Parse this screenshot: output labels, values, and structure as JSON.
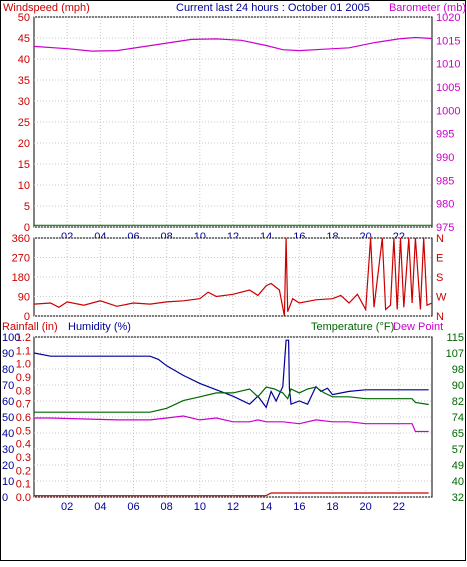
{
  "header": {
    "left_label": "Windspeed (mph)",
    "center_label": "Current last 24 hours : October 01 2005",
    "right_label": "Barometer (mb)"
  },
  "colors": {
    "windspeed": "#cc0000",
    "barometer": "#cc00cc",
    "hour_axis": "#000099",
    "wind_direction": "#cc0000",
    "rainfall": "#cc0000",
    "humidity": "#000099",
    "temperature": "#006600",
    "dew_point": "#cc00cc",
    "green_trace": "#008800"
  },
  "chart_data": [
    {
      "name": "wind-barometer",
      "type": "line",
      "left_axis": {
        "label": "Windspeed (mph)",
        "range": [
          0,
          50
        ],
        "ticks": [
          "0",
          "5",
          "10",
          "15",
          "20",
          "25",
          "30",
          "35",
          "40",
          "45",
          "50"
        ]
      },
      "right_axis": {
        "label": "Barometer (mb)",
        "range": [
          975,
          1020
        ],
        "ticks": [
          "975",
          "980",
          "985",
          "990",
          "995",
          "1000",
          "1005",
          "1010",
          "1015",
          "1020"
        ]
      },
      "x_axis": {
        "range": [
          0,
          24
        ],
        "ticks": [
          {
            "x": 2,
            "label": "02"
          },
          {
            "x": 4,
            "label": "04"
          },
          {
            "x": 6,
            "label": "06"
          },
          {
            "x": 8,
            "label": "08"
          },
          {
            "x": 10,
            "label": "10"
          },
          {
            "x": 12,
            "label": "12"
          },
          {
            "x": 14,
            "label": "14"
          },
          {
            "x": 16,
            "label": "16"
          },
          {
            "x": 18,
            "label": "18"
          },
          {
            "x": 20,
            "label": "20"
          },
          {
            "x": 22,
            "label": "22"
          }
        ]
      },
      "series": [
        {
          "key": "barometer",
          "axis": "right",
          "points": [
            [
              0,
              1013.7
            ],
            [
              2,
              1013.2
            ],
            [
              3.5,
              1012.7
            ],
            [
              5,
              1012.8
            ],
            [
              6.5,
              1013.6
            ],
            [
              8,
              1014.4
            ],
            [
              9.5,
              1015.2
            ],
            [
              11,
              1015.3
            ],
            [
              12.5,
              1015.0
            ],
            [
              14,
              1013.9
            ],
            [
              15,
              1013.0
            ],
            [
              16,
              1012.8
            ],
            [
              17.5,
              1013.1
            ],
            [
              19,
              1013.4
            ],
            [
              20.5,
              1014.5
            ],
            [
              22,
              1015.3
            ],
            [
              23,
              1015.6
            ],
            [
              24,
              1015.4
            ]
          ]
        },
        {
          "key": "windspeed",
          "axis": "left",
          "points": [
            [
              0,
              0.4
            ],
            [
              24,
              0.4
            ]
          ]
        }
      ]
    },
    {
      "name": "wind-direction",
      "type": "line",
      "left_axis": {
        "range": [
          0,
          360
        ],
        "ticks": [
          "0",
          "90",
          "180",
          "270",
          "360"
        ]
      },
      "right_axis": {
        "ticks": [
          "N",
          "E",
          "S",
          "W",
          "N"
        ]
      },
      "x_axis": {
        "range": [
          0,
          24
        ]
      },
      "series": [
        {
          "key": "wind_direction",
          "points": [
            [
              0,
              55
            ],
            [
              1,
              60
            ],
            [
              1.5,
              40
            ],
            [
              2,
              65
            ],
            [
              3,
              50
            ],
            [
              4,
              70
            ],
            [
              5,
              45
            ],
            [
              6,
              60
            ],
            [
              7,
              55
            ],
            [
              8,
              65
            ],
            [
              9,
              70
            ],
            [
              10,
              80
            ],
            [
              10.5,
              110
            ],
            [
              11,
              90
            ],
            [
              12,
              100
            ],
            [
              13,
              120
            ],
            [
              13.5,
              95
            ],
            [
              14,
              140
            ],
            [
              14.3,
              150
            ],
            [
              14.8,
              120
            ],
            [
              15.1,
              0
            ],
            [
              15.2,
              360
            ],
            [
              15.3,
              20
            ],
            [
              15.6,
              80
            ],
            [
              16,
              60
            ],
            [
              17,
              75
            ],
            [
              18,
              80
            ],
            [
              18.5,
              95
            ],
            [
              19,
              60
            ],
            [
              19.5,
              100
            ],
            [
              20,
              30
            ],
            [
              20.3,
              360
            ],
            [
              20.5,
              40
            ],
            [
              21,
              360
            ],
            [
              21.2,
              30
            ],
            [
              21.5,
              50
            ],
            [
              21.7,
              360
            ],
            [
              21.9,
              30
            ],
            [
              22.1,
              360
            ],
            [
              22.3,
              40
            ],
            [
              22.6,
              360
            ],
            [
              22.8,
              60
            ],
            [
              23,
              360
            ],
            [
              23.3,
              30
            ],
            [
              23.5,
              360
            ],
            [
              23.7,
              50
            ],
            [
              24,
              60
            ]
          ]
        }
      ]
    },
    {
      "name": "rain-humidity-temperature",
      "type": "line",
      "header": {
        "rain_label": "Rainfall (in)",
        "humidity_label": "Humidity (%)",
        "temp_label": "Temperature (°F)",
        "dew_label": "Dew Point"
      },
      "rain_axis": {
        "range": [
          0,
          1.2
        ],
        "ticks": [
          "0.0",
          "0.1",
          "0.2",
          "0.3",
          "0.4",
          "0.5",
          "0.6",
          "0.7",
          "0.8",
          "0.9",
          "1.0",
          "1.1",
          "1.2"
        ]
      },
      "humidity_axis": {
        "range": [
          0,
          100
        ],
        "ticks": [
          "0",
          "10",
          "20",
          "30",
          "40",
          "50",
          "60",
          "70",
          "80",
          "90",
          "100"
        ]
      },
      "temp_axis": {
        "range": [
          32,
          115
        ],
        "ticks": [
          "32",
          "40",
          "49",
          "57",
          "65",
          "74",
          "82",
          "90",
          "98",
          "107",
          "115"
        ]
      },
      "x_axis": {
        "range": [
          0,
          24
        ],
        "ticks": [
          {
            "x": 2,
            "label": "02"
          },
          {
            "x": 4,
            "label": "04"
          },
          {
            "x": 6,
            "label": "06"
          },
          {
            "x": 8,
            "label": "08"
          },
          {
            "x": 10,
            "label": "10"
          },
          {
            "x": 12,
            "label": "12"
          },
          {
            "x": 14,
            "label": "14"
          },
          {
            "x": 16,
            "label": "16"
          },
          {
            "x": 18,
            "label": "18"
          },
          {
            "x": 20,
            "label": "20"
          },
          {
            "x": 22,
            "label": "22"
          }
        ]
      },
      "series": [
        {
          "key": "humidity",
          "axis": "humidity",
          "points": [
            [
              0,
              90
            ],
            [
              1,
              88
            ],
            [
              7,
              88
            ],
            [
              7.5,
              86
            ],
            [
              8,
              82
            ],
            [
              9,
              76
            ],
            [
              10,
              71
            ],
            [
              11,
              67
            ],
            [
              12,
              63
            ],
            [
              13,
              58
            ],
            [
              13.5,
              63
            ],
            [
              14,
              56
            ],
            [
              14.3,
              66
            ],
            [
              14.6,
              60
            ],
            [
              15,
              69
            ],
            [
              15.2,
              98
            ],
            [
              15.35,
              98
            ],
            [
              15.4,
              68
            ],
            [
              15.5,
              58
            ],
            [
              16,
              60
            ],
            [
              16.5,
              58
            ],
            [
              17,
              69
            ],
            [
              17.3,
              66
            ],
            [
              17.7,
              68
            ],
            [
              18,
              64
            ],
            [
              19,
              66
            ],
            [
              20,
              67
            ],
            [
              23.8,
              67
            ]
          ]
        },
        {
          "key": "temperature",
          "axis": "temp",
          "points": [
            [
              0,
              76
            ],
            [
              6,
              76
            ],
            [
              7,
              76
            ],
            [
              8,
              78
            ],
            [
              9,
              82
            ],
            [
              10,
              84
            ],
            [
              11,
              86
            ],
            [
              12,
              86
            ],
            [
              13,
              88
            ],
            [
              13.5,
              84
            ],
            [
              14,
              89
            ],
            [
              14.5,
              88
            ],
            [
              15,
              86
            ],
            [
              15.3,
              83
            ],
            [
              15.5,
              88
            ],
            [
              16,
              86
            ],
            [
              16.5,
              88
            ],
            [
              17,
              89
            ],
            [
              17.5,
              86
            ],
            [
              18,
              84
            ],
            [
              19,
              84
            ],
            [
              20,
              83
            ],
            [
              22,
              83
            ],
            [
              22.8,
              83
            ],
            [
              23,
              81
            ],
            [
              23.8,
              80
            ]
          ]
        },
        {
          "key": "dew_point",
          "axis": "temp",
          "points": [
            [
              0,
              73
            ],
            [
              1,
              73
            ],
            [
              5,
              72
            ],
            [
              7,
              72
            ],
            [
              8,
              73
            ],
            [
              9,
              74
            ],
            [
              10,
              72
            ],
            [
              11,
              73
            ],
            [
              12,
              71
            ],
            [
              13,
              71
            ],
            [
              13.5,
              72
            ],
            [
              14,
              71
            ],
            [
              15,
              71
            ],
            [
              16,
              70
            ],
            [
              17,
              72
            ],
            [
              18,
              71
            ],
            [
              19,
              71
            ],
            [
              20,
              70
            ],
            [
              22,
              70
            ],
            [
              22.8,
              70
            ],
            [
              23,
              66
            ],
            [
              23.8,
              66
            ]
          ]
        },
        {
          "key": "rainfall",
          "axis": "rain",
          "points": [
            [
              0,
              0.01
            ],
            [
              14,
              0.01
            ],
            [
              14.3,
              0.03
            ],
            [
              23.8,
              0.03
            ]
          ]
        }
      ]
    }
  ]
}
